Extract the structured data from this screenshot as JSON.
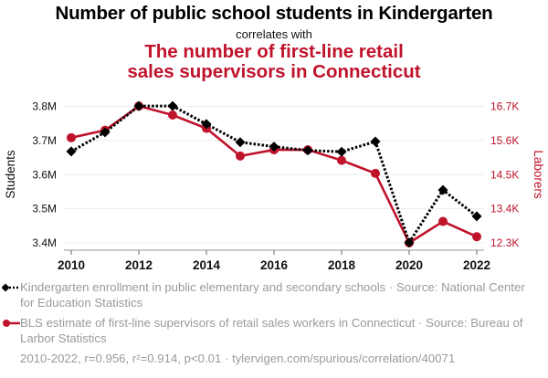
{
  "chart_data": {
    "type": "line",
    "title": "Number of public school students in Kindergarten",
    "subtitle": "correlates with",
    "title2": "The number of first-line retail sales supervisors in Connecticut",
    "x": [
      2010,
      2011,
      2012,
      2013,
      2014,
      2015,
      2016,
      2017,
      2018,
      2019,
      2020,
      2021,
      2022
    ],
    "x_ticks": [
      "2010",
      "2012",
      "2014",
      "2016",
      "2018",
      "2020",
      "2022"
    ],
    "x_tick_values": [
      2010,
      2012,
      2014,
      2016,
      2018,
      2020,
      2022
    ],
    "xlim": [
      2010,
      2022
    ],
    "y_left": {
      "label": "Students",
      "ticks": [
        "3.8M",
        "3.7M",
        "3.6M",
        "3.5M",
        "3.4M"
      ],
      "tick_values": [
        3.8,
        3.7,
        3.6,
        3.5,
        3.4
      ],
      "range": [
        3.4,
        3.8
      ],
      "unit": "millions"
    },
    "y_right": {
      "label": "Laborers",
      "ticks": [
        "16.7K",
        "15.6K",
        "14.5K",
        "13.4K",
        "12.3K"
      ],
      "tick_values": [
        16.7,
        15.6,
        14.5,
        13.4,
        12.3
      ],
      "range": [
        12.3,
        16.7
      ],
      "unit": "thousands"
    },
    "grid": true,
    "series": [
      {
        "name": "Kindergarten enrollment in public elementary and secondary schools",
        "axis": "left",
        "color": "#000000",
        "style": "dotted",
        "marker": "diamond",
        "values": [
          3.668,
          3.724,
          3.801,
          3.801,
          3.748,
          3.695,
          3.682,
          3.671,
          3.667,
          3.697,
          3.401,
          3.555,
          3.478
        ]
      },
      {
        "name": "BLS estimate of first-line supervisors of retail sales workers in Connecticut",
        "axis": "right",
        "color": "#c0132c",
        "style": "solid",
        "marker": "circle",
        "values": [
          15.69,
          15.93,
          16.71,
          16.42,
          15.99,
          15.1,
          15.3,
          15.3,
          14.96,
          14.54,
          12.3,
          12.99,
          12.5
        ]
      }
    ]
  },
  "legend": [
    {
      "text": "Kindergarten enrollment in public elementary and secondary schools · Source: National Center for Education Statistics"
    },
    {
      "text": "BLS estimate of first-line supervisors of retail sales workers in Connecticut · Source: Bureau of Larbor Statistics"
    }
  ],
  "footer": "2010-2022, r=0.956, r²=0.914, p<0.01 · tylervigen.com/spurious/correlation/40071"
}
